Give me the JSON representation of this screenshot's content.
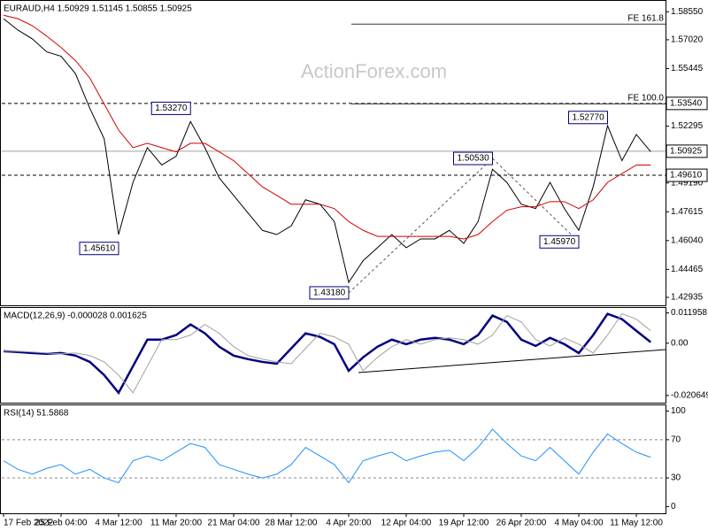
{
  "header": {
    "symbol_line": "EURAUD,H4  1.50929 1.51145 1.50855 1.50925",
    "watermark": "ActionForex.com"
  },
  "chart_data": [
    {
      "type": "line",
      "ylim": [
        1.425,
        1.59
      ],
      "yticks": [
        {
          "value": 1.5855,
          "label": "1.58550"
        },
        {
          "value": 1.5702,
          "label": "1.57020"
        },
        {
          "value": 1.55445,
          "label": "1.55445"
        },
        {
          "value": 1.52295,
          "label": "1.52295"
        },
        {
          "value": 1.4919,
          "label": "1.49190"
        },
        {
          "value": 1.47615,
          "label": "1.47615"
        },
        {
          "value": 1.4604,
          "label": "1.46040"
        },
        {
          "value": 1.44465,
          "label": "1.44465"
        },
        {
          "value": 1.42935,
          "label": "1.42935"
        }
      ],
      "series": [
        {
          "name": "Price",
          "color": "#000000",
          "values": [
            1.5817,
            1.5755,
            1.5707,
            1.5636,
            1.5612,
            1.5517,
            1.5327,
            1.516,
            1.4637,
            1.4922,
            1.5112,
            1.5017,
            1.5065,
            1.5255,
            1.5112,
            1.4946,
            1.4851,
            1.4755,
            1.466,
            1.4637,
            1.4684,
            1.4827,
            1.4803,
            1.4708,
            1.4375,
            1.4494,
            1.4565,
            1.4637,
            1.4565,
            1.4613,
            1.4613,
            1.466,
            1.4589,
            1.4708,
            1.4994,
            1.4922,
            1.4803,
            1.4779,
            1.4922,
            1.4779,
            1.466,
            1.4898,
            1.5232,
            1.5041,
            1.5184,
            1.509
          ]
        },
        {
          "name": "MA",
          "color": "#d40000",
          "values": [
            1.5836,
            1.5817,
            1.5779,
            1.5722,
            1.566,
            1.5588,
            1.5493,
            1.535,
            1.5208,
            1.5112,
            1.5136,
            1.5112,
            1.5089,
            1.5136,
            1.5136,
            1.5089,
            1.5041,
            1.497,
            1.4898,
            1.4851,
            1.4803,
            1.4803,
            1.4803,
            1.4779,
            1.4708,
            1.466,
            1.4627,
            1.4627,
            1.4627,
            1.4627,
            1.4627,
            1.4627,
            1.4613,
            1.4637,
            1.4708,
            1.477,
            1.4789,
            1.4789,
            1.4817,
            1.4817,
            1.4779,
            1.4827,
            1.4922,
            1.497,
            1.5017,
            1.5017
          ]
        }
      ],
      "levels": [
        {
          "value": 1.5354,
          "label": "1.53540"
        },
        {
          "value": 1.4961,
          "label": "1.49610"
        }
      ],
      "current_price": {
        "value": 1.50925,
        "label": "1.50925"
      },
      "fe_levels": [
        {
          "value": 1.579,
          "label": "FE 161.8"
        },
        {
          "value": 1.5354,
          "label": "FE 100.0"
        }
      ],
      "annotations": [
        {
          "x": 13,
          "value": 1.5327,
          "label": "1.53270"
        },
        {
          "x": 8,
          "value": 1.4561,
          "label": "1.45610"
        },
        {
          "x": 24,
          "value": 1.4318,
          "label": "1.43180"
        },
        {
          "x": 34,
          "value": 1.5053,
          "label": "1.50530"
        },
        {
          "x": 40,
          "value": 1.4597,
          "label": "1.45970"
        },
        {
          "x": 42,
          "value": 1.5277,
          "label": "1.52770"
        }
      ]
    },
    {
      "type": "line",
      "title": "MACD(12,26,9) -0.000028 0.001625",
      "ylim": [
        -0.0235,
        0.0139
      ],
      "yticks": [
        0.011958,
        {
          "value": 0,
          "label": "0.00"
        },
        -0.020649
      ],
      "series": [
        {
          "name": "MACD",
          "color": "#000080",
          "values": [
            -0.0032,
            -0.0035,
            -0.0039,
            -0.0042,
            -0.0039,
            -0.0049,
            -0.0074,
            -0.0126,
            -0.0196,
            -0.0091,
            0.0014,
            0.0014,
            0.0032,
            0.0074,
            0.0039,
            -0.0014,
            -0.0049,
            -0.0063,
            -0.0074,
            -0.0081,
            -0.0021,
            0.0039,
            0.0025,
            -0.0004,
            -0.0109,
            -0.0056,
            -0.0014,
            0.0014,
            -0.0004,
            0.0014,
            0.0021,
            0.0014,
            -0.0004,
            0.0032,
            0.0109,
            0.0084,
            0.0014,
            -0.0011,
            0.0021,
            -0.0004,
            -0.0039,
            0.0032,
            0.0116,
            0.0095,
            0.0049,
            0.0004
          ]
        },
        {
          "name": "Signal",
          "color": "#a0a0a0",
          "values": [
            -0.0032,
            -0.0032,
            -0.0035,
            -0.0039,
            -0.0042,
            -0.0039,
            -0.0049,
            -0.0074,
            -0.0126,
            -0.0196,
            -0.0091,
            0.0014,
            0.0014,
            0.0032,
            0.0074,
            0.0039,
            -0.0014,
            -0.0049,
            -0.0063,
            -0.0074,
            -0.0081,
            -0.0021,
            0.0039,
            0.0025,
            -0.0004,
            -0.0109,
            -0.0056,
            -0.0014,
            0.0014,
            -0.0004,
            0.0014,
            0.0021,
            0.0014,
            -0.0004,
            0.0032,
            0.0109,
            0.0084,
            0.0014,
            -0.0011,
            0.0021,
            -0.0004,
            -0.0039,
            0.0032,
            0.0116,
            0.0095,
            0.0049
          ]
        }
      ]
    },
    {
      "type": "line",
      "title": "RSI(14) 51.5868",
      "ylim": [
        -7,
        106
      ],
      "yticks": [
        100,
        70,
        30,
        0
      ],
      "reference_lines": [
        70,
        30
      ],
      "categories": [
        "17 Feb 2022",
        null,
        null,
        null,
        "25 Feb 04:00",
        null,
        null,
        null,
        "4 Mar 12:00",
        null,
        null,
        null,
        "11 Mar 20:00",
        null,
        null,
        null,
        "21 Mar 04:00",
        null,
        null,
        null,
        "28 Mar 12:00",
        null,
        null,
        null,
        "4 Apr 20:00",
        null,
        null,
        null,
        "12 Apr 04:00",
        null,
        null,
        null,
        "19 Apr 12:00",
        null,
        null,
        null,
        "26 Apr 20:00",
        null,
        null,
        null,
        "4 May 04:00",
        null,
        null,
        null,
        "11 May 12:00",
        null
      ],
      "series": [
        {
          "name": "RSI",
          "color": "#1e90ff",
          "values": [
            48,
            39,
            34,
            40,
            44,
            34,
            39,
            30,
            25,
            48,
            53,
            48,
            57,
            66,
            62,
            44,
            39,
            34,
            30,
            34,
            44,
            62,
            53,
            44,
            25,
            48,
            53,
            57,
            48,
            53,
            57,
            59,
            48,
            62,
            81,
            66,
            53,
            48,
            62,
            48,
            34,
            57,
            76,
            66,
            57,
            51.6
          ]
        }
      ]
    }
  ]
}
